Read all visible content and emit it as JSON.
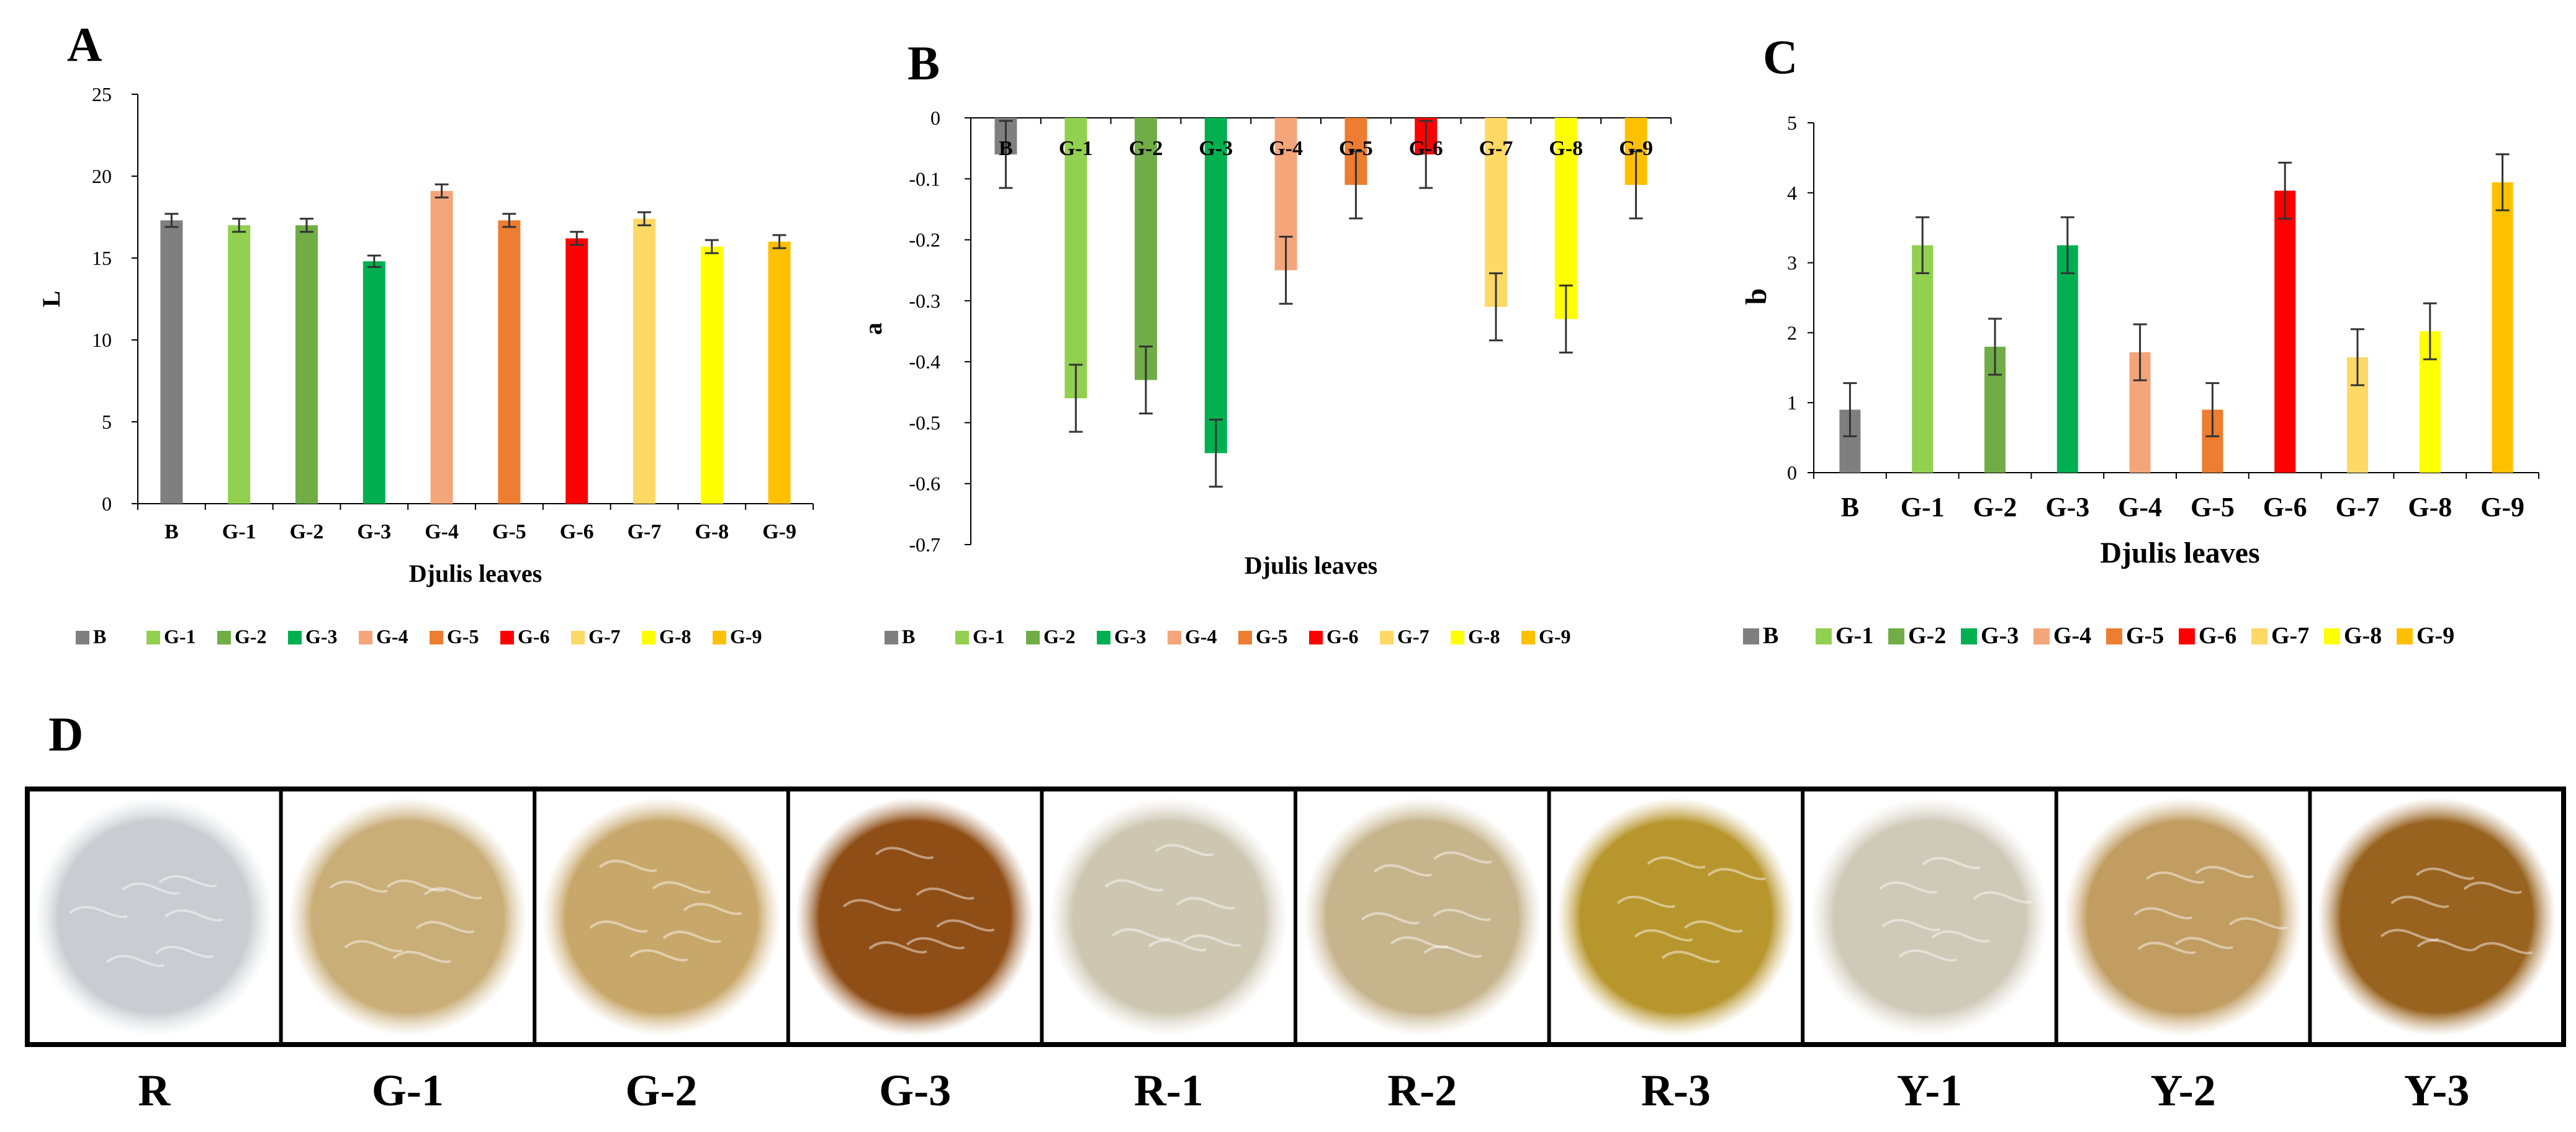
{
  "panels": {
    "A": "A",
    "B": "B",
    "C": "C",
    "D": "D"
  },
  "colors": {
    "B": "#7f7f7f",
    "G-1": "#92d050",
    "G-2": "#70ad47",
    "G-3": "#00b050",
    "G-4": "#f4a57a",
    "G-5": "#ed7d31",
    "G-6": "#ff0000",
    "G-7": "#ffd966",
    "G-8": "#ffff00",
    "G-9": "#ffc000"
  },
  "chart_data": [
    {
      "panel": "A",
      "type": "bar",
      "title": "",
      "xlabel": "Djulis leaves",
      "ylabel": "L",
      "categories": [
        "B",
        "G-1",
        "G-2",
        "G-3",
        "G-4",
        "G-5",
        "G-6",
        "G-7",
        "G-8",
        "G-9"
      ],
      "values": [
        17.3,
        17.0,
        17.0,
        14.8,
        19.1,
        17.3,
        16.2,
        17.4,
        15.7,
        16.0
      ],
      "errors": [
        0.4,
        0.4,
        0.4,
        0.35,
        0.4,
        0.4,
        0.4,
        0.4,
        0.4,
        0.4
      ],
      "ylim": [
        0,
        25
      ],
      "yticks": [
        0,
        5,
        10,
        15,
        20,
        25
      ],
      "legend": [
        "B",
        "G-1",
        "G-2",
        "G-3",
        "G-4",
        "G-5",
        "G-6",
        "G-7",
        "G-8",
        "G-9"
      ],
      "legend_position": "bottom"
    },
    {
      "panel": "B",
      "type": "bar",
      "title": "",
      "xlabel": "Djulis leaves",
      "ylabel": "a",
      "categories": [
        "B",
        "G-1",
        "G-2",
        "G-3",
        "G-4",
        "G-5",
        "G-6",
        "G-7",
        "G-8",
        "G-9"
      ],
      "values": [
        -0.06,
        -0.46,
        -0.43,
        -0.55,
        -0.25,
        -0.11,
        -0.06,
        -0.31,
        -0.33,
        -0.11
      ],
      "errors": [
        0.055,
        0.055,
        0.055,
        0.055,
        0.055,
        0.055,
        0.055,
        0.055,
        0.055,
        0.055
      ],
      "ylim": [
        -0.7,
        0
      ],
      "yticks": [
        0,
        -0.1,
        -0.2,
        -0.3,
        -0.4,
        -0.5,
        -0.6,
        -0.7
      ],
      "ytick_labels": [
        "0",
        "-0.1",
        "-0.2",
        "-0.3",
        "-0.4",
        "-0.5",
        "-0.6",
        "-0.7"
      ],
      "legend": [
        "B",
        "G-1",
        "G-2",
        "G-3",
        "G-4",
        "G-5",
        "G-6",
        "G-7",
        "G-8",
        "G-9"
      ],
      "legend_position": "bottom"
    },
    {
      "panel": "C",
      "type": "bar",
      "title": "",
      "xlabel": "Djulis leaves",
      "ylabel": "b",
      "categories": [
        "B",
        "G-1",
        "G-2",
        "G-3",
        "G-4",
        "G-5",
        "G-6",
        "G-7",
        "G-8",
        "G-9"
      ],
      "values": [
        0.9,
        3.25,
        1.8,
        3.25,
        1.72,
        0.9,
        4.03,
        1.65,
        2.02,
        4.15
      ],
      "errors": [
        0.38,
        0.4,
        0.4,
        0.4,
        0.4,
        0.38,
        0.4,
        0.4,
        0.4,
        0.4
      ],
      "ylim": [
        0,
        5
      ],
      "yticks": [
        0,
        1,
        2,
        3,
        4,
        5
      ],
      "legend": [
        "B",
        "G-1",
        "G-2",
        "G-3",
        "G-4",
        "G-5",
        "G-6",
        "G-7",
        "G-8",
        "G-9"
      ],
      "legend_position": "bottom"
    }
  ],
  "samples": {
    "labels": [
      "R",
      "G-1",
      "G-2",
      "G-3",
      "R-1",
      "R-2",
      "R-3",
      "Y-1",
      "Y-2",
      "Y-3"
    ],
    "tints": [
      "#c9ccd0",
      "#c9ae78",
      "#c8a76a",
      "#8f4e16",
      "#cdc7b2",
      "#c6b48c",
      "#b8962e",
      "#cfc9b8",
      "#c19d62",
      "#98631f"
    ]
  }
}
